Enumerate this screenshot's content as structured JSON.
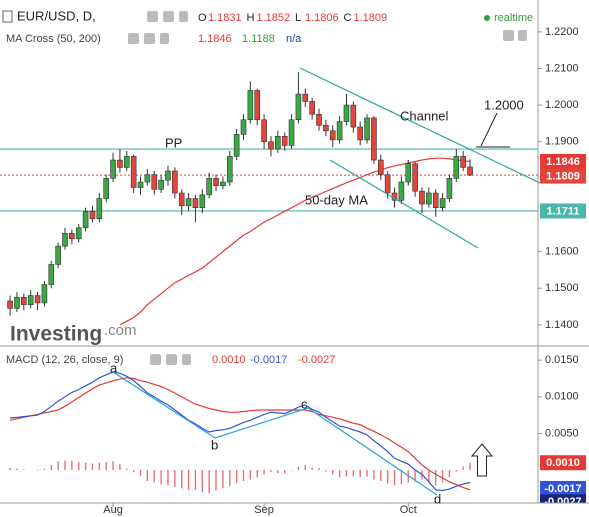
{
  "chart_data": [
    {
      "type": "candlestick",
      "symbol": "EUR/USD, D,",
      "ohlc_legend": [
        {
          "label": "O",
          "value": 1.1831
        },
        {
          "label": "H",
          "value": 1.1852
        },
        {
          "label": "L",
          "value": 1.1806
        },
        {
          "label": "C",
          "value": 1.1809
        }
      ],
      "status": "realtime",
      "indicator": "MA Cross (50, 200)",
      "indicator_values": [
        1.1846,
        1.1188,
        "n/a"
      ],
      "indicator_colors": [
        "#e53935",
        "#2e9e3f",
        "#1e40c8"
      ],
      "brand": "Investing",
      "brand_suffix": ".com",
      "up_color": "#3aa845",
      "down_color": "#e0463d",
      "open": [
        1.1465,
        1.1445,
        1.1475,
        1.1455,
        1.148,
        1.146,
        1.151,
        1.1565,
        1.1615,
        1.165,
        1.1635,
        1.1665,
        1.171,
        1.169,
        1.1745,
        1.18,
        1.185,
        1.183,
        1.186,
        1.1775,
        1.179,
        1.181,
        1.177,
        1.1795,
        1.182,
        1.176,
        1.1725,
        1.1745,
        1.172,
        1.1755,
        1.18,
        1.178,
        1.179,
        1.186,
        1.192,
        1.196,
        1.204,
        1.196,
        1.19,
        1.188,
        1.1915,
        1.189,
        1.196,
        1.203,
        1.201,
        1.1975,
        1.1945,
        1.193,
        1.1905,
        1.1955,
        1.2,
        1.194,
        1.1905,
        1.1965,
        1.185,
        1.181,
        1.176,
        1.174,
        1.179,
        1.184,
        1.1765,
        1.173,
        1.176,
        1.172,
        1.1745,
        1.18,
        1.186,
        1.1831
      ],
      "high": [
        1.148,
        1.149,
        1.1485,
        1.1495,
        1.149,
        1.152,
        1.1575,
        1.1625,
        1.1665,
        1.166,
        1.1675,
        1.172,
        1.1725,
        1.176,
        1.181,
        1.187,
        1.188,
        1.1875,
        1.1865,
        1.1805,
        1.1825,
        1.182,
        1.181,
        1.1835,
        1.183,
        1.177,
        1.176,
        1.1755,
        1.177,
        1.1815,
        1.181,
        1.1805,
        1.1875,
        1.1935,
        1.1975,
        1.2065,
        1.2045,
        1.1975,
        1.1915,
        1.193,
        1.1925,
        1.1975,
        1.209,
        1.2045,
        1.202,
        1.199,
        1.196,
        1.1945,
        1.197,
        1.203,
        1.201,
        1.1955,
        1.1975,
        1.197,
        1.1865,
        1.182,
        1.1775,
        1.1805,
        1.185,
        1.1845,
        1.1775,
        1.1775,
        1.177,
        1.176,
        1.181,
        1.188,
        1.1875,
        1.1852
      ],
      "low": [
        1.1425,
        1.1435,
        1.144,
        1.1445,
        1.144,
        1.145,
        1.15,
        1.1555,
        1.1605,
        1.162,
        1.1625,
        1.1655,
        1.168,
        1.168,
        1.1735,
        1.179,
        1.1815,
        1.182,
        1.176,
        1.1755,
        1.178,
        1.1755,
        1.176,
        1.178,
        1.1745,
        1.17,
        1.171,
        1.168,
        1.1705,
        1.1745,
        1.1765,
        1.177,
        1.178,
        1.185,
        1.1905,
        1.195,
        1.1945,
        1.188,
        1.186,
        1.187,
        1.1875,
        1.188,
        1.195,
        1.1995,
        1.196,
        1.193,
        1.1915,
        1.1885,
        1.1895,
        1.1945,
        1.1925,
        1.189,
        1.1895,
        1.184,
        1.1795,
        1.1745,
        1.172,
        1.173,
        1.178,
        1.175,
        1.1705,
        1.172,
        1.1695,
        1.171,
        1.1735,
        1.179,
        1.182,
        1.1806
      ],
      "close": [
        1.1445,
        1.1475,
        1.1455,
        1.148,
        1.146,
        1.151,
        1.1565,
        1.1615,
        1.165,
        1.1635,
        1.1665,
        1.171,
        1.169,
        1.1745,
        1.18,
        1.185,
        1.183,
        1.186,
        1.1775,
        1.179,
        1.181,
        1.177,
        1.1795,
        1.182,
        1.176,
        1.1725,
        1.1745,
        1.172,
        1.1755,
        1.18,
        1.178,
        1.179,
        1.186,
        1.192,
        1.196,
        1.204,
        1.196,
        1.19,
        1.188,
        1.1915,
        1.189,
        1.196,
        1.203,
        1.201,
        1.1975,
        1.1945,
        1.193,
        1.1905,
        1.1955,
        1.2,
        1.194,
        1.1905,
        1.1965,
        1.185,
        1.181,
        1.176,
        1.174,
        1.179,
        1.184,
        1.1765,
        1.173,
        1.176,
        1.172,
        1.1745,
        1.18,
        1.186,
        1.183,
        1.1809
      ],
      "ma50": {
        "color": "#e53935",
        "values": [
          null,
          null,
          null,
          null,
          null,
          null,
          null,
          null,
          null,
          null,
          null,
          null,
          null,
          null,
          null,
          null,
          1.14,
          1.141,
          1.142,
          1.1435,
          1.1455,
          1.147,
          1.1485,
          1.15,
          1.1515,
          1.1525,
          1.1535,
          1.1545,
          1.1555,
          1.157,
          1.1585,
          1.16,
          1.1615,
          1.163,
          1.1645,
          1.1655,
          1.1668,
          1.168,
          1.169,
          1.17,
          1.171,
          1.172,
          1.173,
          1.174,
          1.1748,
          1.1756,
          1.1764,
          1.1772,
          1.178,
          1.1788,
          1.1795,
          1.1802,
          1.181,
          1.1817,
          1.1823,
          1.1829,
          1.1834,
          1.1838,
          1.1842,
          1.1846,
          1.185,
          1.1853,
          1.1855,
          1.1855,
          1.1853,
          1.1851,
          1.1848,
          1.1846
        ]
      },
      "levels": [
        {
          "label": "PP",
          "value": 1.188,
          "color": "#4db6ac"
        },
        {
          "value": 1.1711,
          "color": "#4db6ac"
        }
      ],
      "annotations": [
        "Channel",
        "1.2000",
        "50-day MA"
      ],
      "xlim": [
        -1.47,
        76.9
      ],
      "ylim": [
        1.1345,
        1.2287
      ],
      "yticks": [
        {
          "value": 1.22,
          "label": "1.2200"
        },
        {
          "value": 1.21,
          "label": "1.2100"
        },
        {
          "value": 1.2,
          "label": "1.2000"
        },
        {
          "value": 1.19,
          "label": "1.1900"
        },
        {
          "value": 1.16,
          "label": "1.1600"
        },
        {
          "value": 1.15,
          "label": "1.1500"
        },
        {
          "value": 1.14,
          "label": "1.1400"
        }
      ]
    },
    {
      "type": "macd",
      "title": "MACD (12, 26, close, 9)",
      "legend_values": [
        {
          "value": 0.001,
          "label": "0.0010"
        },
        -0.0017,
        -0.0027
      ],
      "colors": {
        "histogram": "#e57373",
        "macd": "#2f54d8",
        "signal": "#e53935",
        "signal_box": "#1a237e"
      },
      "histogram": [
        0.0003,
        0.0002,
        0.0001,
        0,
        -0.0001,
        0.0002,
        0.0007,
        0.0012,
        0.0013,
        0.0013,
        0.0011,
        0.001,
        0.0009,
        0.001,
        0.0011,
        0.0012,
        0.0008,
        0.0002,
        -0.0003,
        -0.0008,
        -0.0015,
        -0.0017,
        -0.002,
        -0.0021,
        -0.0023,
        -0.0025,
        -0.0027,
        -0.0027,
        -0.003,
        -0.0032,
        -0.0028,
        -0.0025,
        -0.0022,
        -0.0018,
        -0.0015,
        -0.0013,
        -0.001,
        -0.0006,
        -0.0003,
        -0.0004,
        -0.0005,
        -0.0001,
        0.0004,
        0.0007,
        0.0003,
        0.0003,
        -0.0002,
        -0.0006,
        -0.001,
        -0.0009,
        -0.0009,
        -0.001,
        -0.0009,
        -0.0013,
        -0.0015,
        -0.0018,
        -0.0021,
        -0.0019,
        -0.0017,
        -0.0016,
        -0.0013,
        -0.0016,
        -0.0021,
        -0.0017,
        -0.001,
        -0.0002,
        0.0005,
        0.001
      ],
      "macd": [
        0.0071,
        0.0072,
        0.0073,
        0.0074,
        0.0075,
        0.008,
        0.0087,
        0.0094,
        0.01,
        0.0106,
        0.011,
        0.0115,
        0.012,
        0.0126,
        0.013,
        0.0134,
        0.0132,
        0.0128,
        0.0122,
        0.0114,
        0.0105,
        0.01,
        0.0094,
        0.0089,
        0.0082,
        0.0075,
        0.0068,
        0.0063,
        0.0057,
        0.0052,
        0.0054,
        0.0055,
        0.0057,
        0.0061,
        0.0065,
        0.0068,
        0.0072,
        0.0076,
        0.0079,
        0.0078,
        0.0077,
        0.0081,
        0.0086,
        0.0089,
        0.0083,
        0.0079,
        0.0072,
        0.0066,
        0.006,
        0.0058,
        0.0055,
        0.0052,
        0.0048,
        0.004,
        0.0033,
        0.0025,
        0.0016,
        0.0012,
        0.0008,
        0.0,
        -0.0006,
        -0.0016,
        -0.0027,
        -0.0028,
        -0.0026,
        -0.0022,
        -0.0019,
        -0.0017
      ],
      "signal": [
        0.0068,
        0.007,
        0.0072,
        0.0074,
        0.0076,
        0.0078,
        0.008,
        0.0082,
        0.0087,
        0.0093,
        0.0099,
        0.0105,
        0.0111,
        0.0116,
        0.0119,
        0.0122,
        0.0124,
        0.0126,
        0.0125,
        0.0122,
        0.012,
        0.0117,
        0.0114,
        0.011,
        0.0105,
        0.01,
        0.0095,
        0.009,
        0.0087,
        0.0084,
        0.0082,
        0.008,
        0.0079,
        0.0079,
        0.008,
        0.0081,
        0.0082,
        0.0082,
        0.0082,
        0.0082,
        0.0082,
        0.0082,
        0.0082,
        0.0082,
        0.008,
        0.0076,
        0.0074,
        0.0072,
        0.007,
        0.0067,
        0.0064,
        0.0062,
        0.0057,
        0.0053,
        0.0048,
        0.0043,
        0.0037,
        0.0031,
        0.0025,
        0.0016,
        0.0007,
        0.0,
        -0.0006,
        -0.0011,
        -0.0016,
        -0.002,
        -0.0024,
        -0.0027
      ],
      "annotations": [
        "a",
        "b",
        "c",
        "d"
      ],
      "xlim": [
        -1.47,
        76.9
      ],
      "ylim": [
        -0.0045,
        0.0168
      ],
      "yticks": [
        {
          "value": 0.015,
          "label": "0.0150"
        },
        {
          "value": 0.01,
          "label": "0.0100"
        },
        {
          "value": 0.005,
          "label": "0.0050"
        }
      ],
      "xticks": [
        {
          "value": 15,
          "label": "Aug"
        },
        {
          "value": 37,
          "label": "Sep"
        },
        {
          "value": 58,
          "label": "Oct"
        }
      ]
    }
  ]
}
